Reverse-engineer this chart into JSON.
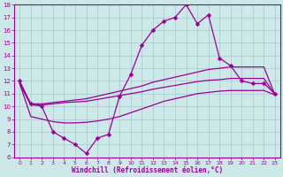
{
  "x": [
    0,
    1,
    2,
    3,
    4,
    5,
    6,
    7,
    8,
    9,
    10,
    11,
    12,
    13,
    14,
    15,
    16,
    17,
    18,
    19,
    20,
    21,
    22,
    23
  ],
  "main_line": [
    12,
    10.2,
    10,
    8,
    7.5,
    7,
    6.3,
    7.5,
    7.8,
    10.8,
    12.5,
    14.8,
    16,
    16.7,
    17,
    18,
    16.5,
    17.2,
    13.8,
    13.2,
    12.0,
    11.8,
    11.8,
    11
  ],
  "upper_line": [
    11.8,
    10.2,
    10.2,
    10.3,
    10.4,
    10.5,
    10.6,
    10.8,
    11.0,
    11.2,
    11.4,
    11.6,
    11.9,
    12.1,
    12.3,
    12.5,
    12.7,
    12.9,
    13.0,
    13.1,
    13.1,
    13.1,
    13.1,
    10.9
  ],
  "middle_line": [
    11.8,
    10.1,
    10.1,
    10.2,
    10.3,
    10.35,
    10.4,
    10.55,
    10.7,
    10.85,
    11.0,
    11.15,
    11.35,
    11.5,
    11.65,
    11.8,
    11.95,
    12.05,
    12.1,
    12.2,
    12.2,
    12.2,
    12.2,
    10.9
  ],
  "bottom_line": [
    11.8,
    9.2,
    9.0,
    8.8,
    8.7,
    8.7,
    8.75,
    8.85,
    9.0,
    9.2,
    9.5,
    9.8,
    10.1,
    10.4,
    10.6,
    10.8,
    11.0,
    11.1,
    11.2,
    11.25,
    11.25,
    11.25,
    11.25,
    10.9
  ],
  "ylim": [
    6,
    18
  ],
  "yticks": [
    6,
    7,
    8,
    9,
    10,
    11,
    12,
    13,
    14,
    15,
    16,
    17,
    18
  ],
  "xlim": [
    0,
    23
  ],
  "xticks": [
    0,
    1,
    2,
    3,
    4,
    5,
    6,
    7,
    8,
    9,
    10,
    11,
    12,
    13,
    14,
    15,
    16,
    17,
    18,
    19,
    20,
    21,
    22,
    23
  ],
  "line_color": "#990099",
  "bg_color": "#cde8e8",
  "grid_color": "#a8c8c8",
  "xlabel": "Windchill (Refroidissement éolien,°C)",
  "tick_color": "#990099",
  "marker": "D",
  "markersize": 2.5,
  "linewidth": 0.9
}
